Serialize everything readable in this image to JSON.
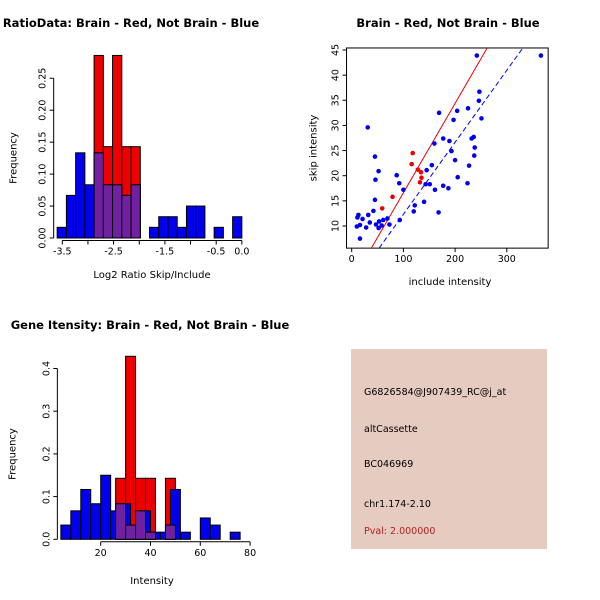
{
  "colors": {
    "blue": "#0000EE",
    "red": "#EE0000",
    "overlap_purple": "#7020A0",
    "info_box_bg": "#E6CBC1",
    "pval_red": "#B22222",
    "axis_black": "#000000"
  },
  "chart_data": [
    {
      "id": "ratio_hist",
      "type": "bar",
      "title": "RatioData: Brain - Red, Not Brain - Blue",
      "xlabel": "Log2 Ratio Skip/Include",
      "ylabel": "Frequency",
      "xlim": [
        -3.6,
        0.0
      ],
      "ylim": [
        0,
        0.2857
      ],
      "x_ticks": [
        -3.5,
        -3.0,
        -2.5,
        -2.0,
        -1.5,
        -1.0,
        -0.5,
        0.0
      ],
      "x_tick_labels": [
        {
          "v": -3.5,
          "t": "-3.5"
        },
        {
          "v": -2.5,
          "t": "-2.5"
        },
        {
          "v": -1.5,
          "t": "-1.5"
        },
        {
          "v": -0.5,
          "t": "-0.5"
        },
        {
          "v": 0.0,
          "t": "0.0"
        }
      ],
      "y_ticks": [
        0.0,
        0.05,
        0.1,
        0.15,
        0.2,
        0.25
      ],
      "y_tick_labels": [
        "0.00",
        "0.05",
        "0.10",
        "0.15",
        "0.20",
        "0.25"
      ],
      "series": [
        {
          "name": "Not Brain (blue)",
          "bin_start": -3.6,
          "bin_width": 0.18,
          "values": [
            0.0167,
            0.0667,
            0.1333,
            0.0833,
            0.1333,
            0.0833,
            0.0833,
            0.0667,
            0.0833,
            0,
            0.0167,
            0.0333,
            0.0333,
            0.0167,
            0.05,
            0.05,
            0,
            0.0167,
            0,
            0.0333
          ]
        },
        {
          "name": "Brain (red)",
          "bin_start": -2.88,
          "bin_width": 0.18,
          "values": [
            0.2857,
            0.1429,
            0.2857,
            0.1429,
            0.1429
          ]
        }
      ],
      "overlap_segments": [
        [
          -2.88,
          -2.7,
          0.1333
        ],
        [
          -2.7,
          -2.52,
          0.0833
        ],
        [
          -2.52,
          -2.34,
          0.0833
        ],
        [
          -2.34,
          -2.16,
          0.0667
        ],
        [
          -2.16,
          -1.98,
          0.0833
        ]
      ]
    },
    {
      "id": "intensity_scatter",
      "type": "scatter",
      "title": "Brain - Red, Not Brain - Blue",
      "xlabel": "include intensity",
      "ylabel": "skip intensity",
      "xlim": [
        -10,
        380
      ],
      "ylim": [
        5.6,
        45.4
      ],
      "x_ticks": [
        0,
        100,
        200,
        300
      ],
      "x_tick_labels": [
        "0",
        "100",
        "200",
        "300"
      ],
      "y_ticks": [
        10,
        15,
        20,
        25,
        30,
        35,
        40,
        45
      ],
      "y_tick_labels": [
        "10",
        "15",
        "20",
        "25",
        "30",
        "35",
        "40",
        "45"
      ],
      "series": [
        {
          "name": "Not Brain (blue)",
          "points": [
            [
              13,
              12.2
            ],
            [
              11,
              11.7
            ],
            [
              21,
              11.4
            ],
            [
              32,
              12.2
            ],
            [
              42,
              13.0
            ],
            [
              35,
              10.7
            ],
            [
              16,
              10.2
            ],
            [
              10,
              9.9
            ],
            [
              28,
              9.7
            ],
            [
              47,
              10.3
            ],
            [
              53,
              10.9
            ],
            [
              58,
              10.1
            ],
            [
              52,
              9.6
            ],
            [
              61,
              11.2
            ],
            [
              69,
              11.5
            ],
            [
              16,
              7.5
            ],
            [
              45,
              15.2
            ],
            [
              73,
              10.3
            ],
            [
              93,
              11.2
            ],
            [
              120,
              12.9
            ],
            [
              140,
              14.8
            ],
            [
              168,
              12.7
            ],
            [
              31,
              29.6
            ],
            [
              45,
              23.8
            ],
            [
              52,
              20.9
            ],
            [
              46,
              19.2
            ],
            [
              87,
              20.1
            ],
            [
              92,
              18.5
            ],
            [
              100,
              17.2
            ],
            [
              145,
              21.1
            ],
            [
              155,
              22.1
            ],
            [
              160,
              26.4
            ],
            [
              189,
              26.9
            ],
            [
              193,
              24.9
            ],
            [
              177,
              18.0
            ],
            [
              187,
              17.5
            ],
            [
              143,
              18.3
            ],
            [
              151,
              18.3
            ],
            [
              161,
              17.2
            ],
            [
              122,
              14.1
            ],
            [
              197,
              31.1
            ],
            [
              204,
              32.9
            ],
            [
              225,
              33.4
            ],
            [
              242,
              43.9
            ],
            [
              247,
              36.7
            ],
            [
              246,
              34.9
            ],
            [
              251,
              31.4
            ],
            [
              232,
              27.4
            ],
            [
              236,
              27.7
            ],
            [
              238,
              25.6
            ],
            [
              237,
              24.0
            ],
            [
              227,
              22.0
            ],
            [
              224,
              18.5
            ],
            [
              205,
              19.7
            ],
            [
              200,
              23.1
            ],
            [
              169,
              32.5
            ],
            [
              177,
              27.4
            ],
            [
              366,
              43.9
            ]
          ]
        },
        {
          "name": "Brain (red)",
          "points": [
            [
              118,
              24.5
            ],
            [
              116,
              22.3
            ],
            [
              128,
              21.2
            ],
            [
              134,
              20.7
            ],
            [
              135,
              19.6
            ],
            [
              132,
              18.7
            ],
            [
              79,
              15.8
            ],
            [
              59,
              13.5
            ]
          ]
        }
      ],
      "fit_lines": [
        {
          "name": "brain-fit",
          "color_key": "red",
          "x1": 38,
          "y1": 5.6,
          "x2": 262,
          "y2": 45.4,
          "dashed": false
        },
        {
          "name": "notbrain-fit",
          "color_key": "blue",
          "x1": 53,
          "y1": 5.6,
          "x2": 331,
          "y2": 45.4,
          "dashed": true
        }
      ]
    },
    {
      "id": "gene_hist",
      "type": "bar",
      "title": "Gene Itensity: Brain - Red, Not Brain - Blue",
      "xlabel": "Intensity",
      "ylabel": "Frequency",
      "xlim": [
        4,
        80
      ],
      "ylim": [
        0,
        0.4286
      ],
      "x_ticks": [
        20,
        40,
        60,
        80
      ],
      "x_tick_labels": [
        {
          "v": 20,
          "t": "20"
        },
        {
          "v": 40,
          "t": "40"
        },
        {
          "v": 60,
          "t": "60"
        },
        {
          "v": 80,
          "t": "80"
        }
      ],
      "y_ticks": [
        0.0,
        0.1,
        0.2,
        0.3,
        0.4
      ],
      "y_tick_labels": [
        "0.0",
        "0.1",
        "0.2",
        "0.3",
        "0.4"
      ],
      "series": [
        {
          "name": "Not Brain (blue)",
          "bin_start": 4,
          "bin_width": 4,
          "values": [
            0.0333,
            0.0667,
            0.1167,
            0.0833,
            0.15,
            0.0667,
            0.0833,
            0.0333,
            0.0667,
            0.0167,
            0.0167,
            0.1167,
            0.0167,
            0,
            0.05,
            0.0333,
            0,
            0.0167
          ]
        },
        {
          "name": "Brain (red)",
          "bin_start": 26,
          "bin_width": 4,
          "values": [
            0.1429,
            0.4286,
            0.1429,
            0.1429,
            0,
            0.1429
          ]
        }
      ],
      "overlap_segments": [
        [
          26,
          30,
          0.0833
        ],
        [
          30,
          34,
          0.0333
        ],
        [
          34,
          38,
          0.0667
        ],
        [
          38,
          42,
          0.0167
        ],
        [
          46,
          50,
          0.0333
        ]
      ]
    }
  ],
  "info_panel": {
    "lines": [
      "G6826584@J907439_RC@j_at",
      "altCassette",
      "BC046969",
      "chr1.174-2.10"
    ],
    "pval": "Pval: 2.000000"
  }
}
